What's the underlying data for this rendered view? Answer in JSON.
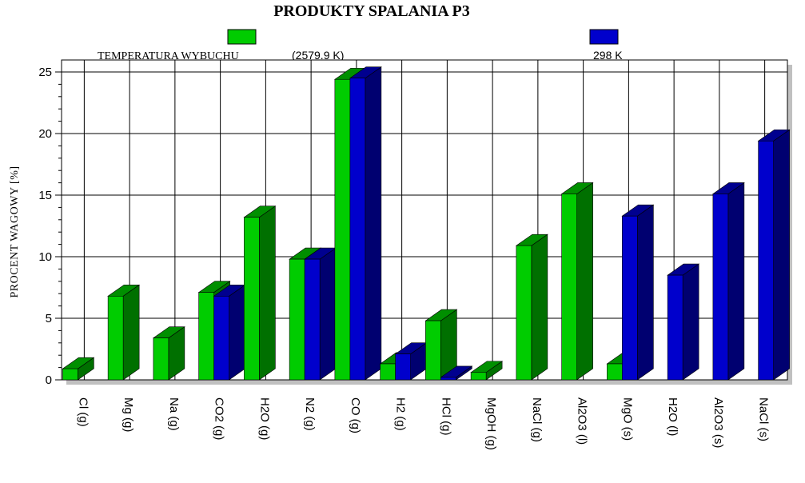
{
  "chart_data": {
    "type": "bar",
    "title": "PRODUKTY SPALANIA P3",
    "ylabel": "PROCENT WAGOWY [%]",
    "xlabel": "",
    "ylim": [
      0,
      25
    ],
    "yticks": [
      "0",
      "5",
      "10",
      "15",
      "20",
      "25"
    ],
    "grid": true,
    "legend_placement": "top",
    "legend_label_prefix": "TEMPERATURA WYBUCHU",
    "categories": [
      "Cl (g)",
      "Mg (g)",
      "Na (g)",
      "CO2 (g)",
      "H2O (g)",
      "N2 (g)",
      "CO (g)",
      "H2 (g)",
      "HCl (g)",
      "MgOH (g)",
      "NaCl (g)",
      "Al2O3 (l)",
      "MgO (s)",
      "H2O (l)",
      "Al2O3 (s)",
      "NaCl (s)"
    ],
    "series": [
      {
        "name": "(2579.9 K)",
        "color": "#00cc00",
        "values": [
          0.9,
          6.8,
          3.4,
          7.1,
          13.2,
          9.8,
          24.4,
          1.3,
          4.8,
          0.6,
          10.9,
          15.1,
          1.3,
          0,
          0,
          0
        ]
      },
      {
        "name": "298 K",
        "color": "#0000cc",
        "values": [
          0,
          0,
          0,
          6.8,
          0,
          9.8,
          24.5,
          2.1,
          0.2,
          0,
          0,
          0,
          13.3,
          8.5,
          15.1,
          19.4
        ]
      }
    ]
  }
}
